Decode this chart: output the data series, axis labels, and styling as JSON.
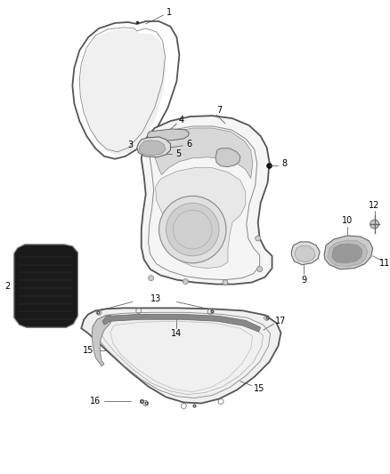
{
  "background_color": "#ffffff",
  "fig_width": 4.38,
  "fig_height": 5.33,
  "dpi": 100,
  "line_color": "#555555",
  "label_fontsize": 7.0
}
